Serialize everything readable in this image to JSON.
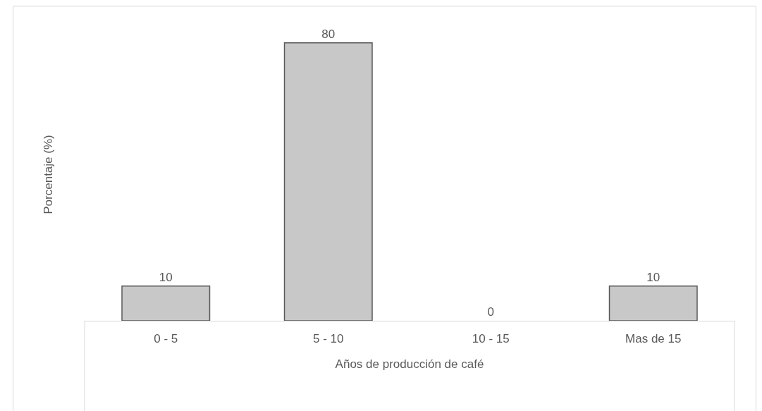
{
  "chart_data": {
    "type": "bar",
    "xlabel": "Años de producción de café",
    "ylabel": "Porcentaje (%)",
    "categories": [
      "0 - 5",
      "5 - 10",
      "10 - 15",
      "Mas de 15"
    ],
    "values": [
      10,
      80,
      0,
      10
    ],
    "color": "#c8c8c8",
    "data_labels": true,
    "grid": false,
    "legend": false
  }
}
